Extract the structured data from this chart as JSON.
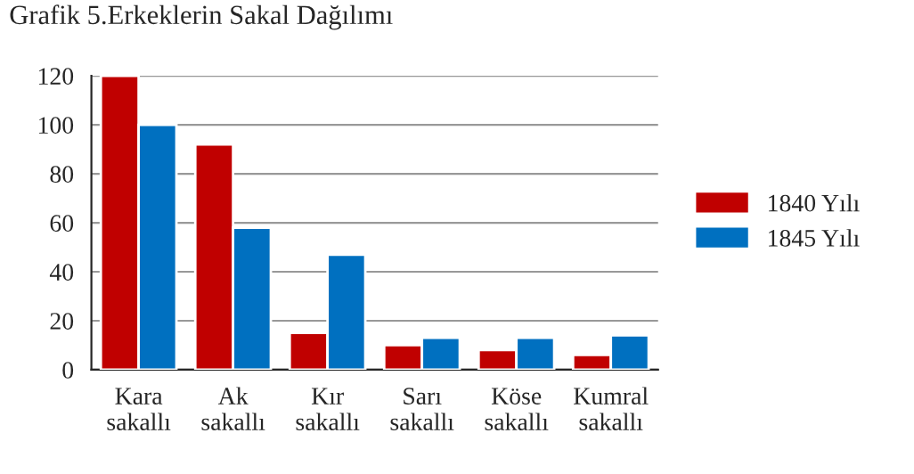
{
  "chart_data": {
    "type": "bar",
    "title": "Grafik 5.Erkeklerin Sakal Dağılımı",
    "categories": [
      "Kara\nsakallı",
      "Ak\nsakallı",
      "Kır\nsakallı",
      "Sarı\nsakallı",
      "Köse\nsakallı",
      "Kumral\nsakallı"
    ],
    "series": [
      {
        "name": "1840 Yılı",
        "color": "#c00000",
        "values": [
          120,
          92,
          15,
          10,
          8,
          6
        ]
      },
      {
        "name": "1845 Yılı",
        "color": "#0070c0",
        "values": [
          100,
          58,
          47,
          13,
          13,
          14
        ]
      }
    ],
    "ylim": [
      0,
      120
    ],
    "yticks": [
      0,
      20,
      40,
      60,
      80,
      100,
      120
    ],
    "grid": "y",
    "legend": "right"
  }
}
